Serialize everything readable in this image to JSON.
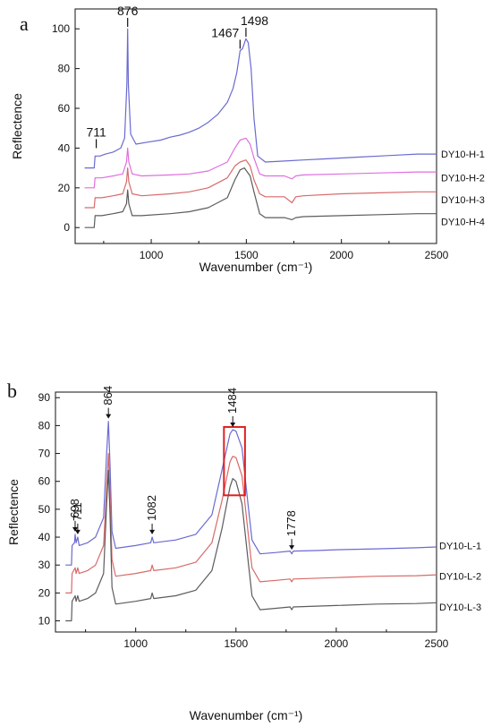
{
  "colors": {
    "purple": "#6a6ad2",
    "magenta": "#df6fdf",
    "red": "#d86a6a",
    "gray": "#5c5c5c",
    "highlight_box": "#e02020",
    "axis": "#111111"
  },
  "chart_data": [
    {
      "panel": "a",
      "type": "line",
      "xlabel": "Wavenumber (cm⁻¹)",
      "ylabel": "Reflectence",
      "xlim": [
        600,
        2500
      ],
      "ylim": [
        -8,
        110
      ],
      "xticks": [
        1000,
        1500,
        2000,
        2500
      ],
      "yticks": [
        0,
        20,
        40,
        60,
        80,
        100
      ],
      "grid": false,
      "series": [
        {
          "name": "DY10-H-1",
          "color": "#6a6ad2",
          "points": [
            [
              650,
              30
            ],
            [
              700,
              30
            ],
            [
              705,
              36
            ],
            [
              730,
              36
            ],
            [
              760,
              37
            ],
            [
              800,
              38
            ],
            [
              840,
              40
            ],
            [
              860,
              45
            ],
            [
              872,
              72
            ],
            [
              876,
              100
            ],
            [
              880,
              72
            ],
            [
              892,
              47
            ],
            [
              920,
              42
            ],
            [
              980,
              43
            ],
            [
              1050,
              44
            ],
            [
              1100,
              45.5
            ],
            [
              1150,
              46.5
            ],
            [
              1200,
              48
            ],
            [
              1250,
              50
            ],
            [
              1300,
              53
            ],
            [
              1350,
              57
            ],
            [
              1400,
              63
            ],
            [
              1430,
              70
            ],
            [
              1450,
              78
            ],
            [
              1467,
              89
            ],
            [
              1480,
              90
            ],
            [
              1498,
              95
            ],
            [
              1510,
              93
            ],
            [
              1525,
              80
            ],
            [
              1540,
              55
            ],
            [
              1560,
              36
            ],
            [
              1600,
              33
            ],
            [
              1700,
              33.5
            ],
            [
              1800,
              34
            ],
            [
              1900,
              34.5
            ],
            [
              2000,
              35
            ],
            [
              2100,
              35.5
            ],
            [
              2200,
              36
            ],
            [
              2300,
              36.5
            ],
            [
              2400,
              37
            ],
            [
              2500,
              37
            ]
          ]
        },
        {
          "name": "DY10-H-2",
          "color": "#df6fdf",
          "points": [
            [
              650,
              20
            ],
            [
              700,
              20
            ],
            [
              705,
              25
            ],
            [
              740,
              25
            ],
            [
              800,
              26
            ],
            [
              850,
              27
            ],
            [
              870,
              33
            ],
            [
              876,
              40
            ],
            [
              882,
              33
            ],
            [
              900,
              27
            ],
            [
              950,
              26
            ],
            [
              1100,
              26.5
            ],
            [
              1200,
              27
            ],
            [
              1300,
              28.5
            ],
            [
              1400,
              33
            ],
            [
              1440,
              40
            ],
            [
              1467,
              44
            ],
            [
              1498,
              45
            ],
            [
              1520,
              42
            ],
            [
              1540,
              35
            ],
            [
              1570,
              27
            ],
            [
              1600,
              26
            ],
            [
              1700,
              26
            ],
            [
              1740,
              24.5
            ],
            [
              1760,
              26
            ],
            [
              1800,
              26.5
            ],
            [
              2000,
              27
            ],
            [
              2200,
              27.5
            ],
            [
              2400,
              28
            ],
            [
              2500,
              28
            ]
          ]
        },
        {
          "name": "DY10-H-3",
          "color": "#d86a6a",
          "points": [
            [
              650,
              10
            ],
            [
              700,
              10
            ],
            [
              705,
              15
            ],
            [
              740,
              15
            ],
            [
              800,
              16
            ],
            [
              850,
              17
            ],
            [
              870,
              23
            ],
            [
              876,
              30
            ],
            [
              882,
              23
            ],
            [
              900,
              17
            ],
            [
              950,
              16
            ],
            [
              1100,
              17
            ],
            [
              1200,
              18
            ],
            [
              1300,
              20
            ],
            [
              1400,
              25
            ],
            [
              1440,
              31
            ],
            [
              1467,
              33
            ],
            [
              1498,
              34
            ],
            [
              1520,
              31
            ],
            [
              1540,
              24
            ],
            [
              1570,
              17
            ],
            [
              1600,
              15.5
            ],
            [
              1700,
              15.5
            ],
            [
              1740,
              12.5
            ],
            [
              1760,
              15.5
            ],
            [
              1800,
              16
            ],
            [
              2000,
              17
            ],
            [
              2200,
              17.5
            ],
            [
              2400,
              18
            ],
            [
              2500,
              18
            ]
          ]
        },
        {
          "name": "DY10-H-4",
          "color": "#5c5c5c",
          "points": [
            [
              650,
              0
            ],
            [
              700,
              0
            ],
            [
              705,
              6
            ],
            [
              740,
              6
            ],
            [
              800,
              7
            ],
            [
              850,
              8
            ],
            [
              870,
              12
            ],
            [
              876,
              19
            ],
            [
              882,
              12
            ],
            [
              900,
              6
            ],
            [
              950,
              6
            ],
            [
              1100,
              7
            ],
            [
              1200,
              8
            ],
            [
              1300,
              10
            ],
            [
              1400,
              15
            ],
            [
              1440,
              24
            ],
            [
              1467,
              29
            ],
            [
              1490,
              30
            ],
            [
              1520,
              26
            ],
            [
              1540,
              18
            ],
            [
              1570,
              7
            ],
            [
              1600,
              5
            ],
            [
              1700,
              5
            ],
            [
              1740,
              4
            ],
            [
              1760,
              5
            ],
            [
              1800,
              5.5
            ],
            [
              2000,
              6
            ],
            [
              2200,
              6.5
            ],
            [
              2400,
              7
            ],
            [
              2500,
              7
            ]
          ]
        }
      ],
      "annotations": [
        {
          "label": "711",
          "x": 711,
          "y": 40
        },
        {
          "label": "876",
          "x": 876,
          "y": 101
        },
        {
          "label": "1467",
          "x": 1467,
          "y": 90
        },
        {
          "label": "1498",
          "x": 1498,
          "y": 96
        }
      ],
      "legend_labels": [
        {
          "label": "DY10-H-1",
          "y": 37
        },
        {
          "label": "DY10-H-2",
          "y": 25
        },
        {
          "label": "DY10-H-3",
          "y": 14
        },
        {
          "label": "DY10-H-4",
          "y": 3
        }
      ]
    },
    {
      "panel": "b",
      "type": "line",
      "xlabel": "Wavenumber (cm⁻¹)",
      "ylabel": "Reflectence",
      "xlim": [
        600,
        2500
      ],
      "ylim": [
        6,
        92
      ],
      "xticks": [
        1000,
        1500,
        2000,
        2500
      ],
      "yticks": [
        10,
        20,
        30,
        40,
        50,
        60,
        70,
        80,
        90
      ],
      "grid": false,
      "series": [
        {
          "name": "DY10-L-1",
          "color": "#6a6ad2",
          "points": [
            [
              650,
              30
            ],
            [
              680,
              30
            ],
            [
              683,
              37
            ],
            [
              695,
              38
            ],
            [
              698,
              41
            ],
            [
              703,
              38
            ],
            [
              711,
              40
            ],
            [
              718,
              37
            ],
            [
              760,
              38
            ],
            [
              800,
              40
            ],
            [
              840,
              47
            ],
            [
              855,
              70
            ],
            [
              864,
              81.5
            ],
            [
              872,
              66
            ],
            [
              882,
              42
            ],
            [
              900,
              36
            ],
            [
              1000,
              37
            ],
            [
              1075,
              38
            ],
            [
              1082,
              40
            ],
            [
              1090,
              38
            ],
            [
              1200,
              39
            ],
            [
              1300,
              41
            ],
            [
              1380,
              48
            ],
            [
              1430,
              64
            ],
            [
              1470,
              77
            ],
            [
              1484,
              78.5
            ],
            [
              1500,
              78
            ],
            [
              1530,
              72
            ],
            [
              1560,
              52
            ],
            [
              1580,
              39
            ],
            [
              1620,
              34
            ],
            [
              1700,
              34.5
            ],
            [
              1770,
              35
            ],
            [
              1778,
              34
            ],
            [
              1786,
              35
            ],
            [
              1900,
              35.2
            ],
            [
              2000,
              35.5
            ],
            [
              2200,
              35.8
            ],
            [
              2400,
              36.2
            ],
            [
              2500,
              36.5
            ]
          ]
        },
        {
          "name": "DY10-L-2",
          "color": "#d86a6a",
          "points": [
            [
              650,
              20
            ],
            [
              680,
              20
            ],
            [
              683,
              27
            ],
            [
              698,
              29
            ],
            [
              703,
              27
            ],
            [
              711,
              29
            ],
            [
              718,
              27
            ],
            [
              760,
              28
            ],
            [
              800,
              30
            ],
            [
              840,
              37
            ],
            [
              855,
              58
            ],
            [
              864,
              70
            ],
            [
              872,
              55
            ],
            [
              882,
              32
            ],
            [
              900,
              26
            ],
            [
              1000,
              27
            ],
            [
              1075,
              28
            ],
            [
              1082,
              30
            ],
            [
              1090,
              28
            ],
            [
              1200,
              29
            ],
            [
              1300,
              31
            ],
            [
              1380,
              38
            ],
            [
              1430,
              53
            ],
            [
              1470,
              67
            ],
            [
              1484,
              69
            ],
            [
              1500,
              68.5
            ],
            [
              1530,
              62
            ],
            [
              1560,
              42
            ],
            [
              1580,
              29
            ],
            [
              1620,
              24
            ],
            [
              1700,
              24.5
            ],
            [
              1770,
              25
            ],
            [
              1778,
              24
            ],
            [
              1786,
              25
            ],
            [
              2000,
              25.5
            ],
            [
              2200,
              26
            ],
            [
              2400,
              26.2
            ],
            [
              2500,
              26.5
            ]
          ]
        },
        {
          "name": "DY10-L-3",
          "color": "#5c5c5c",
          "points": [
            [
              650,
              10
            ],
            [
              680,
              10
            ],
            [
              683,
              17
            ],
            [
              698,
              19
            ],
            [
              703,
              17
            ],
            [
              711,
              19
            ],
            [
              718,
              17
            ],
            [
              760,
              18
            ],
            [
              800,
              20
            ],
            [
              840,
              27
            ],
            [
              855,
              52
            ],
            [
              864,
              64
            ],
            [
              872,
              48
            ],
            [
              882,
              22
            ],
            [
              900,
              16
            ],
            [
              1000,
              17
            ],
            [
              1075,
              18
            ],
            [
              1082,
              20
            ],
            [
              1090,
              18
            ],
            [
              1200,
              19
            ],
            [
              1300,
              21
            ],
            [
              1380,
              28
            ],
            [
              1430,
              43
            ],
            [
              1470,
              58
            ],
            [
              1484,
              61
            ],
            [
              1500,
              60
            ],
            [
              1530,
              52
            ],
            [
              1560,
              32
            ],
            [
              1580,
              19
            ],
            [
              1620,
              14
            ],
            [
              1700,
              14.5
            ],
            [
              1770,
              15
            ],
            [
              1778,
              14
            ],
            [
              1786,
              15
            ],
            [
              2000,
              15.5
            ],
            [
              2200,
              16
            ],
            [
              2400,
              16.2
            ],
            [
              2500,
              16.5
            ]
          ]
        }
      ],
      "annotations": [
        {
          "label": "698",
          "x": 698,
          "y": 42,
          "rotated": true
        },
        {
          "label": "711",
          "x": 711,
          "y": 41,
          "rotated": true
        },
        {
          "label": "864",
          "x": 864,
          "y": 82.5,
          "rotated": true
        },
        {
          "label": "1082",
          "x": 1082,
          "y": 41,
          "rotated": true
        },
        {
          "label": "1484",
          "x": 1484,
          "y": 79.5,
          "rotated": true
        },
        {
          "label": "1778",
          "x": 1778,
          "y": 35.5,
          "rotated": true
        }
      ],
      "highlight_box": {
        "x": [
          1440,
          1545
        ],
        "y": [
          55,
          79.5
        ]
      },
      "legend_labels": [
        {
          "label": "DY10-L-1",
          "y": 37
        },
        {
          "label": "DY10-L-2",
          "y": 26
        },
        {
          "label": "DY10-L-3",
          "y": 15
        }
      ]
    }
  ]
}
